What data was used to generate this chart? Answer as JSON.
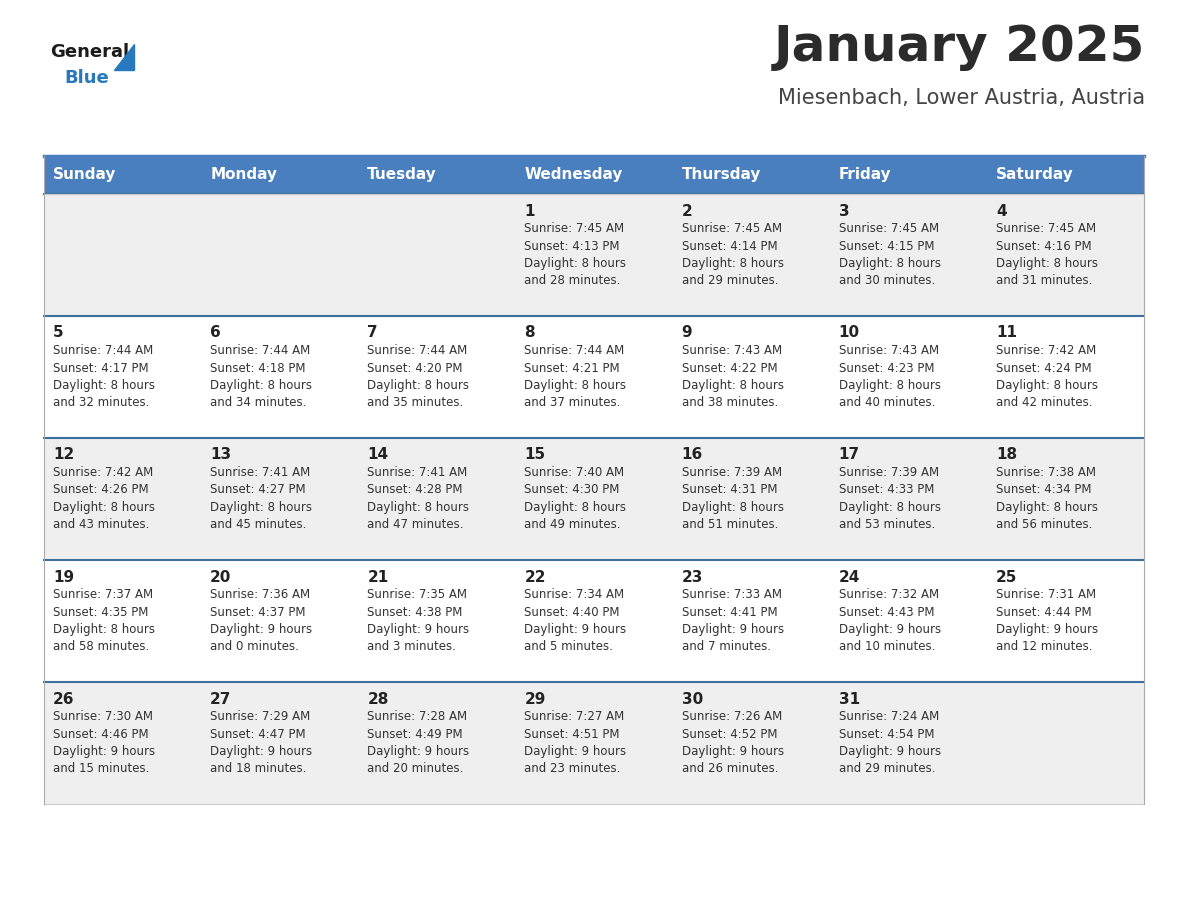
{
  "title": "January 2025",
  "subtitle": "Miesenbach, Lower Austria, Austria",
  "days_of_week": [
    "Sunday",
    "Monday",
    "Tuesday",
    "Wednesday",
    "Thursday",
    "Friday",
    "Saturday"
  ],
  "header_bg": "#4A7FBF",
  "header_text": "#FFFFFF",
  "row_bg_odd": "#EFEFEF",
  "row_bg_even": "#FFFFFF",
  "cell_border_color": "#8899AA",
  "week_separator_color": "#3A6FA0",
  "title_color": "#2B2B2B",
  "subtitle_color": "#444444",
  "day_number_color": "#222222",
  "cell_text_color": "#333333",
  "logo_general_color": "#1A1A1A",
  "logo_blue_color": "#2878BE",
  "calendar_data": [
    [
      {
        "day": null,
        "sunrise": null,
        "sunset": null,
        "daylight": null
      },
      {
        "day": null,
        "sunrise": null,
        "sunset": null,
        "daylight": null
      },
      {
        "day": null,
        "sunrise": null,
        "sunset": null,
        "daylight": null
      },
      {
        "day": 1,
        "sunrise": "7:45 AM",
        "sunset": "4:13 PM",
        "daylight": "8 hours\nand 28 minutes."
      },
      {
        "day": 2,
        "sunrise": "7:45 AM",
        "sunset": "4:14 PM",
        "daylight": "8 hours\nand 29 minutes."
      },
      {
        "day": 3,
        "sunrise": "7:45 AM",
        "sunset": "4:15 PM",
        "daylight": "8 hours\nand 30 minutes."
      },
      {
        "day": 4,
        "sunrise": "7:45 AM",
        "sunset": "4:16 PM",
        "daylight": "8 hours\nand 31 minutes."
      }
    ],
    [
      {
        "day": 5,
        "sunrise": "7:44 AM",
        "sunset": "4:17 PM",
        "daylight": "8 hours\nand 32 minutes."
      },
      {
        "day": 6,
        "sunrise": "7:44 AM",
        "sunset": "4:18 PM",
        "daylight": "8 hours\nand 34 minutes."
      },
      {
        "day": 7,
        "sunrise": "7:44 AM",
        "sunset": "4:20 PM",
        "daylight": "8 hours\nand 35 minutes."
      },
      {
        "day": 8,
        "sunrise": "7:44 AM",
        "sunset": "4:21 PM",
        "daylight": "8 hours\nand 37 minutes."
      },
      {
        "day": 9,
        "sunrise": "7:43 AM",
        "sunset": "4:22 PM",
        "daylight": "8 hours\nand 38 minutes."
      },
      {
        "day": 10,
        "sunrise": "7:43 AM",
        "sunset": "4:23 PM",
        "daylight": "8 hours\nand 40 minutes."
      },
      {
        "day": 11,
        "sunrise": "7:42 AM",
        "sunset": "4:24 PM",
        "daylight": "8 hours\nand 42 minutes."
      }
    ],
    [
      {
        "day": 12,
        "sunrise": "7:42 AM",
        "sunset": "4:26 PM",
        "daylight": "8 hours\nand 43 minutes."
      },
      {
        "day": 13,
        "sunrise": "7:41 AM",
        "sunset": "4:27 PM",
        "daylight": "8 hours\nand 45 minutes."
      },
      {
        "day": 14,
        "sunrise": "7:41 AM",
        "sunset": "4:28 PM",
        "daylight": "8 hours\nand 47 minutes."
      },
      {
        "day": 15,
        "sunrise": "7:40 AM",
        "sunset": "4:30 PM",
        "daylight": "8 hours\nand 49 minutes."
      },
      {
        "day": 16,
        "sunrise": "7:39 AM",
        "sunset": "4:31 PM",
        "daylight": "8 hours\nand 51 minutes."
      },
      {
        "day": 17,
        "sunrise": "7:39 AM",
        "sunset": "4:33 PM",
        "daylight": "8 hours\nand 53 minutes."
      },
      {
        "day": 18,
        "sunrise": "7:38 AM",
        "sunset": "4:34 PM",
        "daylight": "8 hours\nand 56 minutes."
      }
    ],
    [
      {
        "day": 19,
        "sunrise": "7:37 AM",
        "sunset": "4:35 PM",
        "daylight": "8 hours\nand 58 minutes."
      },
      {
        "day": 20,
        "sunrise": "7:36 AM",
        "sunset": "4:37 PM",
        "daylight": "9 hours\nand 0 minutes."
      },
      {
        "day": 21,
        "sunrise": "7:35 AM",
        "sunset": "4:38 PM",
        "daylight": "9 hours\nand 3 minutes."
      },
      {
        "day": 22,
        "sunrise": "7:34 AM",
        "sunset": "4:40 PM",
        "daylight": "9 hours\nand 5 minutes."
      },
      {
        "day": 23,
        "sunrise": "7:33 AM",
        "sunset": "4:41 PM",
        "daylight": "9 hours\nand 7 minutes."
      },
      {
        "day": 24,
        "sunrise": "7:32 AM",
        "sunset": "4:43 PM",
        "daylight": "9 hours\nand 10 minutes."
      },
      {
        "day": 25,
        "sunrise": "7:31 AM",
        "sunset": "4:44 PM",
        "daylight": "9 hours\nand 12 minutes."
      }
    ],
    [
      {
        "day": 26,
        "sunrise": "7:30 AM",
        "sunset": "4:46 PM",
        "daylight": "9 hours\nand 15 minutes."
      },
      {
        "day": 27,
        "sunrise": "7:29 AM",
        "sunset": "4:47 PM",
        "daylight": "9 hours\nand 18 minutes."
      },
      {
        "day": 28,
        "sunrise": "7:28 AM",
        "sunset": "4:49 PM",
        "daylight": "9 hours\nand 20 minutes."
      },
      {
        "day": 29,
        "sunrise": "7:27 AM",
        "sunset": "4:51 PM",
        "daylight": "9 hours\nand 23 minutes."
      },
      {
        "day": 30,
        "sunrise": "7:26 AM",
        "sunset": "4:52 PM",
        "daylight": "9 hours\nand 26 minutes."
      },
      {
        "day": 31,
        "sunrise": "7:24 AM",
        "sunset": "4:54 PM",
        "daylight": "9 hours\nand 29 minutes."
      },
      {
        "day": null,
        "sunrise": null,
        "sunset": null,
        "daylight": null
      }
    ]
  ]
}
